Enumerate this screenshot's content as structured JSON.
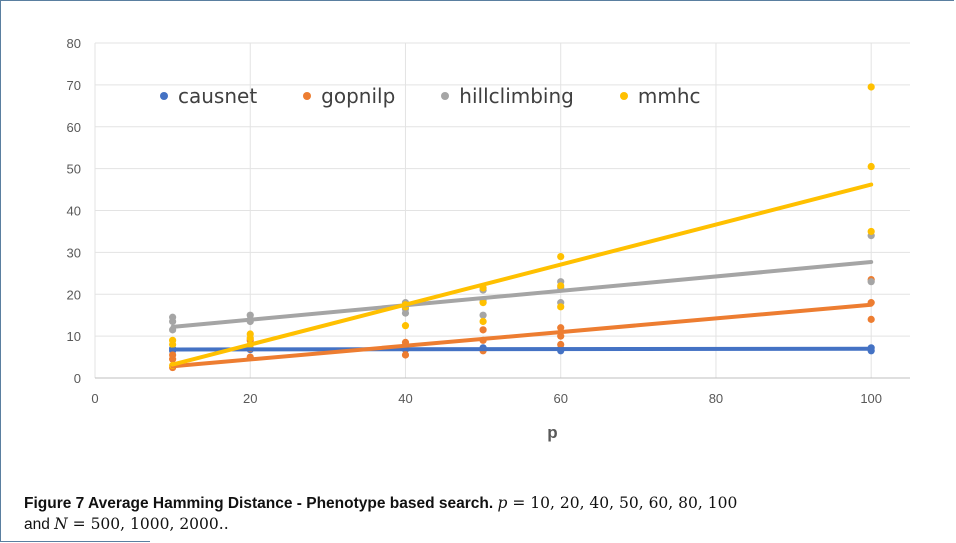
{
  "chart_data": {
    "type": "scatter",
    "xlabel": "p",
    "ylabel": "",
    "xlim": [
      0,
      105
    ],
    "ylim": [
      0,
      80
    ],
    "x_ticks": [
      0,
      20,
      40,
      60,
      80,
      100
    ],
    "y_ticks": [
      0,
      10,
      20,
      30,
      40,
      50,
      60,
      70,
      80
    ],
    "grid": true,
    "legend_position": "top",
    "series": [
      {
        "name": "causnet",
        "color": "#4472c4",
        "points": [
          [
            10,
            6.5
          ],
          [
            10,
            7
          ],
          [
            20,
            6.8
          ],
          [
            20,
            7
          ],
          [
            40,
            6.8
          ],
          [
            40,
            7
          ],
          [
            50,
            7
          ],
          [
            50,
            7.2
          ],
          [
            60,
            6.5
          ],
          [
            60,
            7
          ],
          [
            100,
            6.5
          ],
          [
            100,
            7.2
          ]
        ],
        "trend": [
          [
            10,
            6.8
          ],
          [
            100,
            7
          ]
        ]
      },
      {
        "name": "gopnilp",
        "color": "#ed7d31",
        "points": [
          [
            10,
            2.5
          ],
          [
            10,
            4.5
          ],
          [
            10,
            5.5
          ],
          [
            20,
            5
          ],
          [
            20,
            7
          ],
          [
            20,
            9
          ],
          [
            40,
            5.5
          ],
          [
            40,
            7
          ],
          [
            40,
            8.5
          ],
          [
            50,
            6.5
          ],
          [
            50,
            9
          ],
          [
            50,
            11.5
          ],
          [
            60,
            8
          ],
          [
            60,
            10
          ],
          [
            60,
            12
          ],
          [
            100,
            14
          ],
          [
            100,
            18
          ],
          [
            100,
            23.5
          ]
        ],
        "trend": [
          [
            10,
            2.8
          ],
          [
            100,
            17.5
          ]
        ]
      },
      {
        "name": "hillclimbing",
        "color": "#a5a5a5",
        "points": [
          [
            10,
            11.5
          ],
          [
            10,
            13.5
          ],
          [
            10,
            14.5
          ],
          [
            20,
            13.5
          ],
          [
            20,
            14
          ],
          [
            20,
            15
          ],
          [
            40,
            15.5
          ],
          [
            40,
            16.5
          ],
          [
            40,
            18
          ],
          [
            50,
            15
          ],
          [
            50,
            18.5
          ],
          [
            50,
            21
          ],
          [
            60,
            18
          ],
          [
            60,
            21.5
          ],
          [
            60,
            23
          ],
          [
            100,
            23
          ],
          [
            100,
            34
          ]
        ],
        "trend": [
          [
            10,
            12.2
          ],
          [
            100,
            27.7
          ]
        ]
      },
      {
        "name": "mmhc",
        "color": "#ffc000",
        "points": [
          [
            10,
            3
          ],
          [
            10,
            8
          ],
          [
            10,
            9
          ],
          [
            20,
            8
          ],
          [
            20,
            9.5
          ],
          [
            20,
            10.5
          ],
          [
            40,
            12.5
          ],
          [
            40,
            17
          ],
          [
            40,
            17.5
          ],
          [
            50,
            13.5
          ],
          [
            50,
            18
          ],
          [
            50,
            21.5
          ],
          [
            60,
            17
          ],
          [
            60,
            22
          ],
          [
            60,
            29
          ],
          [
            100,
            35
          ],
          [
            100,
            50.5
          ],
          [
            100,
            69.5
          ]
        ],
        "trend": [
          [
            10,
            3.2
          ],
          [
            100,
            46.2
          ]
        ]
      }
    ]
  },
  "caption": {
    "lead": "Figure 7 Average Hamming Distance - Phenotype based search.",
    "p_var": "p",
    "p_values": " = 10, 20, 40, 50, 60, 80, 100",
    "and_text": "and ",
    "n_var": "N",
    "n_values": " = 500, 1000, 2000.."
  }
}
